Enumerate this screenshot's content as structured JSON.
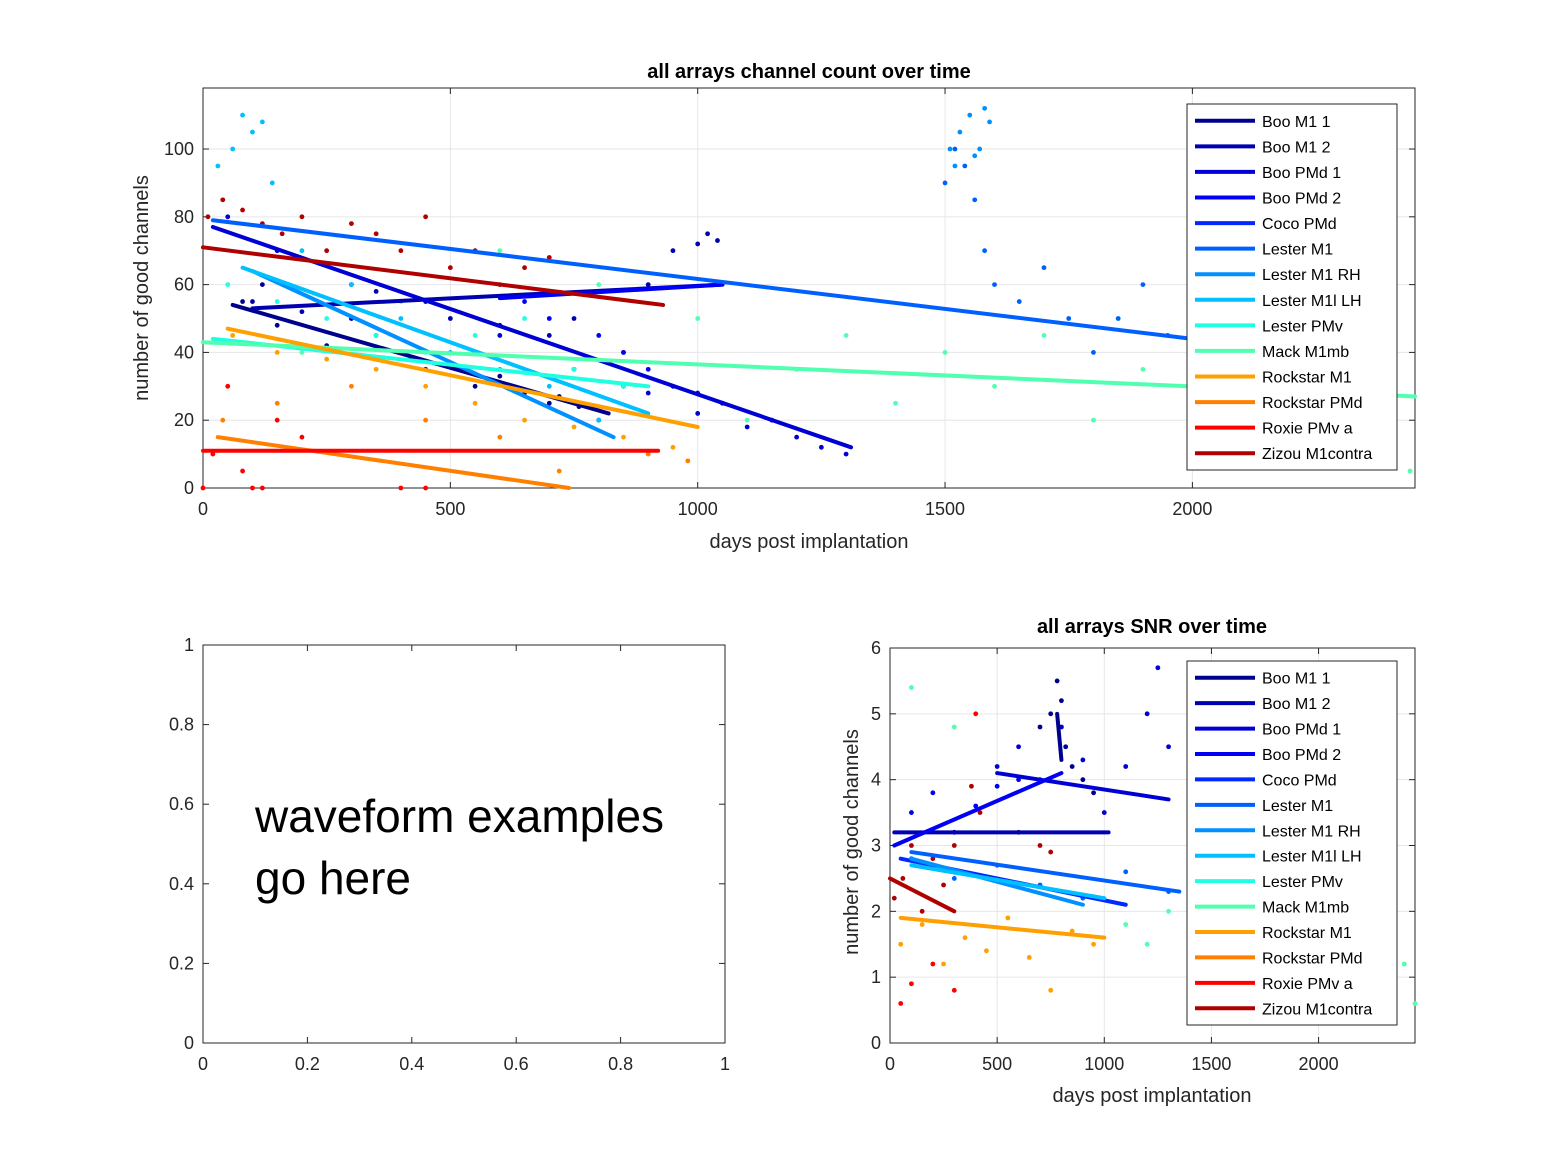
{
  "legend_entries": [
    "Boo M1 1",
    "Boo M1 2",
    "Boo PMd 1",
    "Boo PMd 2",
    "Coco PMd",
    "Lester M1",
    "Lester M1 RH",
    "Lester M1l LH",
    "Lester PMv",
    "Mack M1mb",
    "Rockstar M1",
    "Rockstar PMd",
    "Roxie PMv a",
    "Zizou M1contra"
  ],
  "series_colors": [
    "#00008f",
    "#0000b0",
    "#0000d4",
    "#0000f5",
    "#0028ff",
    "#0060ff",
    "#0090ff",
    "#00c0ff",
    "#20ffe0",
    "#50ffb0",
    "#ffa000",
    "#ff8000",
    "#ff0000",
    "#b00000"
  ],
  "chart_data": [
    {
      "type": "scatter",
      "title": "all arrays channel count over time",
      "xlabel": "days post implantation",
      "ylabel": "number of good channels",
      "xlim": [
        0,
        2450
      ],
      "ylim": [
        0,
        118
      ],
      "xticks": [
        0,
        500,
        1000,
        1500,
        2000
      ],
      "yticks": [
        0,
        20,
        40,
        60,
        80,
        100
      ],
      "xtick_labels": [
        "0",
        "500",
        "1000",
        "1500",
        "2000"
      ],
      "ytick_labels": [
        "0",
        "20",
        "40",
        "60",
        "80",
        "100"
      ],
      "grid": true,
      "legend": "top-right",
      "fit_lines": [
        {
          "series": "Boo M1 1",
          "x": [
            60,
            820
          ],
          "y": [
            54,
            22
          ]
        },
        {
          "series": "Boo M1 2",
          "x": [
            100,
            1050
          ],
          "y": [
            53,
            60
          ]
        },
        {
          "series": "Boo PMd 1",
          "x": [
            20,
            1310
          ],
          "y": [
            77,
            12
          ]
        },
        {
          "series": "Boo PMd 2",
          "x": [
            600,
            1050
          ],
          "y": [
            56,
            60
          ]
        },
        {
          "series": "Lester M1",
          "x": [
            20,
            2000
          ],
          "y": [
            79,
            44
          ]
        },
        {
          "series": "Lester M1 RH",
          "x": [
            100,
            830
          ],
          "y": [
            64,
            15
          ]
        },
        {
          "series": "Lester M1l LH",
          "x": [
            80,
            900
          ],
          "y": [
            65,
            22
          ]
        },
        {
          "series": "Lester PMv",
          "x": [
            20,
            900
          ],
          "y": [
            44,
            30
          ]
        },
        {
          "series": "Mack M1mb",
          "x": [
            0,
            2450
          ],
          "y": [
            43,
            27
          ]
        },
        {
          "series": "Rockstar M1",
          "x": [
            50,
            1000
          ],
          "y": [
            47,
            18
          ]
        },
        {
          "series": "Rockstar PMd",
          "x": [
            30,
            740
          ],
          "y": [
            15,
            0
          ]
        },
        {
          "series": "Roxie PMv a",
          "x": [
            0,
            920
          ],
          "y": [
            11,
            11
          ]
        },
        {
          "series": "Zizou M1contra",
          "x": [
            0,
            930
          ],
          "y": [
            71,
            54
          ]
        }
      ],
      "scatter_points": [
        {
          "series": "Boo M1 1",
          "x": [
            80,
            150,
            250,
            350,
            450,
            550,
            650,
            700,
            760,
            800,
            120,
            300,
            420,
            600,
            720
          ],
          "y": [
            55,
            48,
            42,
            45,
            35,
            30,
            28,
            25,
            24,
            20,
            60,
            50,
            38,
            33,
            27
          ]
        },
        {
          "series": "Boo M1 2",
          "x": [
            100,
            200,
            350,
            500,
            700,
            850,
            950,
            1000,
            1020,
            1040,
            900,
            750,
            600
          ],
          "y": [
            55,
            52,
            58,
            50,
            45,
            40,
            70,
            72,
            75,
            73,
            60,
            50,
            48
          ]
        },
        {
          "series": "Boo PMd 1",
          "x": [
            50,
            150,
            300,
            450,
            600,
            750,
            900,
            1000,
            1100,
            1200,
            1250,
            1300,
            1150,
            1050,
            850
          ],
          "y": [
            80,
            70,
            60,
            55,
            45,
            35,
            28,
            22,
            18,
            15,
            12,
            10,
            20,
            25,
            30
          ]
        },
        {
          "series": "Boo PMd 2",
          "x": [
            650,
            700,
            800,
            850,
            900,
            950,
            1000,
            1050
          ],
          "y": [
            55,
            50,
            45,
            40,
            35,
            30,
            28,
            25
          ]
        },
        {
          "series": "Lester M1",
          "x": [
            1500,
            1520,
            1540,
            1560,
            1580,
            1600,
            1650,
            1700,
            1750,
            1800,
            1850,
            1900,
            1950,
            2000,
            2100,
            2200
          ],
          "y": [
            90,
            100,
            95,
            85,
            70,
            60,
            55,
            65,
            50,
            40,
            50,
            60,
            45,
            55,
            55,
            50
          ]
        },
        {
          "series": "Lester M1 RH",
          "x": [
            1510,
            1530,
            1550,
            1570,
            1590,
            1520,
            1560,
            1580
          ],
          "y": [
            100,
            105,
            110,
            100,
            108,
            95,
            98,
            112
          ]
        },
        {
          "series": "Lester M1l LH",
          "x": [
            30,
            60,
            80,
            100,
            120,
            140,
            200,
            300,
            400,
            500,
            600,
            700,
            800
          ],
          "y": [
            95,
            100,
            110,
            105,
            108,
            90,
            70,
            60,
            50,
            40,
            35,
            30,
            20
          ]
        },
        {
          "series": "Lester PMv",
          "x": [
            50,
            150,
            250,
            350,
            450,
            550,
            650,
            750,
            850
          ],
          "y": [
            60,
            55,
            50,
            45,
            40,
            45,
            50,
            35,
            30
          ]
        },
        {
          "series": "Mack M1mb",
          "x": [
            200,
            400,
            600,
            800,
            1000,
            1100,
            1200,
            1300,
            1400,
            1500,
            1600,
            1700,
            1800,
            1900,
            2000,
            2100,
            2200,
            2300,
            2400,
            2440
          ],
          "y": [
            40,
            55,
            70,
            60,
            50,
            20,
            35,
            45,
            25,
            40,
            30,
            45,
            20,
            35,
            30,
            25,
            30,
            20,
            10,
            5
          ]
        },
        {
          "series": "Rockstar M1",
          "x": [
            60,
            150,
            250,
            350,
            450,
            550,
            650,
            750,
            850,
            950
          ],
          "y": [
            45,
            40,
            38,
            35,
            30,
            25,
            20,
            18,
            15,
            12
          ]
        },
        {
          "series": "Rockstar PMd",
          "x": [
            40,
            150,
            300,
            450,
            600,
            720,
            900,
            980
          ],
          "y": [
            20,
            25,
            30,
            20,
            15,
            5,
            10,
            8
          ]
        },
        {
          "series": "Roxie PMv a",
          "x": [
            0,
            20,
            50,
            80,
            100,
            120,
            150,
            200,
            400,
            450
          ],
          "y": [
            0,
            10,
            30,
            5,
            0,
            0,
            20,
            15,
            0,
            0
          ]
        },
        {
          "series": "Zizou M1contra",
          "x": [
            10,
            40,
            80,
            120,
            160,
            200,
            250,
            300,
            350,
            400,
            450,
            500,
            550,
            600,
            650,
            700
          ],
          "y": [
            80,
            85,
            82,
            78,
            75,
            80,
            70,
            78,
            75,
            70,
            80,
            65,
            70,
            60,
            65,
            68
          ]
        }
      ]
    },
    {
      "type": "line",
      "title": "",
      "xlabel": "",
      "ylabel": "",
      "xlim": [
        0,
        1
      ],
      "ylim": [
        0,
        1
      ],
      "xticks": [
        0,
        0.2,
        0.4,
        0.6,
        0.8,
        1
      ],
      "yticks": [
        0,
        0.2,
        0.4,
        0.6,
        0.8,
        1
      ],
      "xtick_labels": [
        "0",
        "0.2",
        "0.4",
        "0.6",
        "0.8",
        "1"
      ],
      "ytick_labels": [
        "0",
        "0.2",
        "0.4",
        "0.6",
        "0.8",
        "1"
      ],
      "grid": false,
      "annotation": [
        "waveform examples",
        "go here"
      ]
    },
    {
      "type": "scatter",
      "title": "all arrays SNR over time",
      "xlabel": "days post implantation",
      "ylabel": "number of good channels",
      "xlim": [
        0,
        2450
      ],
      "ylim": [
        0,
        6
      ],
      "xticks": [
        0,
        500,
        1000,
        1500,
        2000
      ],
      "yticks": [
        0,
        1,
        2,
        3,
        4,
        5,
        6
      ],
      "xtick_labels": [
        "0",
        "500",
        "1000",
        "1500",
        "2000"
      ],
      "ytick_labels": [
        "0",
        "1",
        "2",
        "3",
        "4",
        "5",
        "6"
      ],
      "grid": true,
      "legend": "top-right",
      "fit_lines": [
        {
          "series": "Boo M1 1",
          "x": [
            780,
            800
          ],
          "y": [
            5.0,
            4.3
          ]
        },
        {
          "series": "Boo M1 2",
          "x": [
            20,
            1020
          ],
          "y": [
            3.2,
            3.2
          ]
        },
        {
          "series": "Boo PMd 1",
          "x": [
            500,
            1300
          ],
          "y": [
            4.1,
            3.7
          ]
        },
        {
          "series": "Boo PMd 2",
          "x": [
            20,
            800
          ],
          "y": [
            3.0,
            4.1
          ]
        },
        {
          "series": "Coco PMd",
          "x": [
            50,
            1100
          ],
          "y": [
            2.8,
            2.1
          ]
        },
        {
          "series": "Lester M1",
          "x": [
            100,
            1350
          ],
          "y": [
            2.9,
            2.3
          ]
        },
        {
          "series": "Lester M1 RH",
          "x": [
            100,
            900
          ],
          "y": [
            2.8,
            2.1
          ]
        },
        {
          "series": "Lester M1l LH",
          "x": [
            100,
            1000
          ],
          "y": [
            2.7,
            2.2
          ]
        },
        {
          "series": "Rockstar M1",
          "x": [
            50,
            1000
          ],
          "y": [
            1.9,
            1.6
          ]
        },
        {
          "series": "Zizou M1contra",
          "x": [
            0,
            300
          ],
          "y": [
            2.5,
            2.0
          ]
        }
      ],
      "scatter_points": [
        {
          "series": "Boo M1 1",
          "x": [
            700,
            750,
            780,
            800,
            820,
            850,
            900,
            950
          ],
          "y": [
            4.8,
            5.0,
            5.5,
            5.2,
            4.5,
            4.2,
            4.0,
            3.8
          ]
        },
        {
          "series": "Boo PMd 1",
          "x": [
            500,
            600,
            700,
            800,
            900,
            1000,
            1100,
            1200,
            1250,
            1300
          ],
          "y": [
            4.2,
            4.5,
            4.0,
            4.8,
            4.3,
            3.5,
            4.2,
            5.0,
            5.7,
            4.5
          ]
        },
        {
          "series": "Boo PMd 2",
          "x": [
            100,
            200,
            300,
            400,
            500,
            600
          ],
          "y": [
            3.5,
            3.8,
            3.2,
            3.6,
            3.9,
            4.0
          ]
        },
        {
          "series": "Lester M1",
          "x": [
            100,
            300,
            500,
            700,
            900,
            1100,
            1300
          ],
          "y": [
            2.8,
            2.5,
            2.7,
            2.4,
            2.2,
            2.6,
            2.3
          ]
        },
        {
          "series": "Mack M1mb",
          "x": [
            1100,
            1200,
            1300,
            1400,
            2400,
            2450,
            100,
            300
          ],
          "y": [
            1.8,
            1.5,
            2.0,
            1.6,
            1.2,
            0.6,
            5.4,
            4.8
          ]
        },
        {
          "series": "Rockstar M1",
          "x": [
            50,
            150,
            250,
            350,
            450,
            550,
            650,
            750,
            850,
            950
          ],
          "y": [
            1.5,
            1.8,
            1.2,
            1.6,
            1.4,
            1.9,
            1.3,
            0.8,
            1.7,
            1.5
          ]
        },
        {
          "series": "Roxie PMv a",
          "x": [
            50,
            100,
            200,
            300,
            400
          ],
          "y": [
            0.6,
            0.9,
            1.2,
            0.8,
            5.0
          ]
        },
        {
          "series": "Zizou M1contra",
          "x": [
            20,
            60,
            100,
            150,
            200,
            250,
            300,
            380,
            420,
            600,
            700,
            750
          ],
          "y": [
            2.2,
            2.5,
            3.0,
            2.0,
            2.8,
            2.4,
            3.0,
            3.9,
            3.5,
            3.2,
            3.0,
            2.9
          ]
        }
      ]
    }
  ]
}
